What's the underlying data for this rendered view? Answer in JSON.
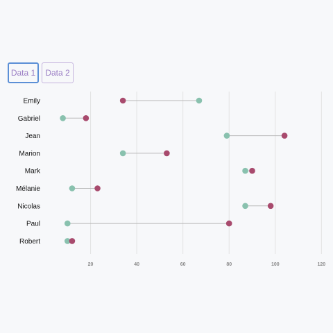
{
  "tabs": [
    {
      "label": "Data 1",
      "active": true
    },
    {
      "label": "Data 2",
      "active": false
    }
  ],
  "colors": {
    "value1": "#89c1ae",
    "value2": "#a84a6d",
    "connector": "#b8b8b8",
    "grid": "#e2e2e2",
    "active_tab_border": "#5b8fd6",
    "tab_text": "#9a7dc4"
  },
  "chart_data": {
    "type": "scatter",
    "style": "lollipop-dumbbell",
    "orientation": "horizontal",
    "title": "",
    "xlabel": "",
    "ylabel": "",
    "categories": [
      "Emily",
      "Gabriel",
      "Jean",
      "Marion",
      "Mark",
      "Mélanie",
      "Nicolas",
      "Paul",
      "Robert"
    ],
    "series": [
      {
        "values": [
          67,
          8,
          79,
          34,
          87,
          12,
          87,
          10,
          10
        ],
        "color": "#89c1ae"
      },
      {
        "values": [
          34,
          18,
          104,
          53,
          90,
          23,
          98,
          80,
          12
        ],
        "color": "#a84a6d"
      }
    ],
    "xlim": [
      0,
      122
    ],
    "x_ticks": [
      20,
      40,
      60,
      80,
      100,
      120
    ],
    "grid": "vertical"
  }
}
